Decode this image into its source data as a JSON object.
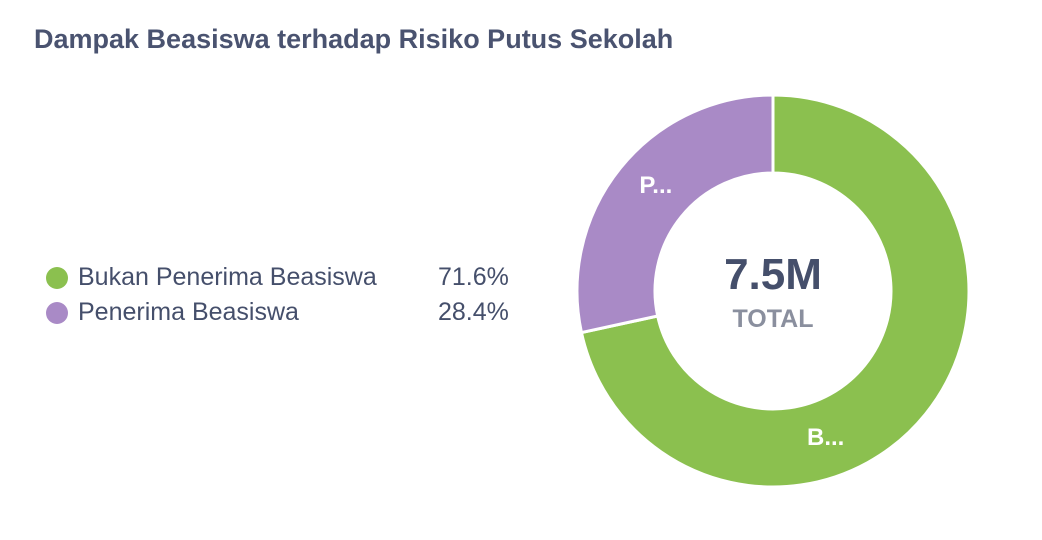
{
  "chart_data": {
    "type": "pie",
    "title": "Dampak Beasiswa terhadap Risiko Putus Sekolah",
    "categories": [
      "Bukan Penerima Beasiswa",
      "Penerima Beasiswa"
    ],
    "values": [
      71.6,
      28.4
    ],
    "value_labels": [
      "71.6%",
      "28.4%"
    ],
    "slice_labels": [
      "B...",
      "P..."
    ],
    "colors": [
      "#8bc04f",
      "#a98ac6"
    ],
    "total_value": "7.5M",
    "total_label": "TOTAL",
    "legend_placement": "left"
  }
}
